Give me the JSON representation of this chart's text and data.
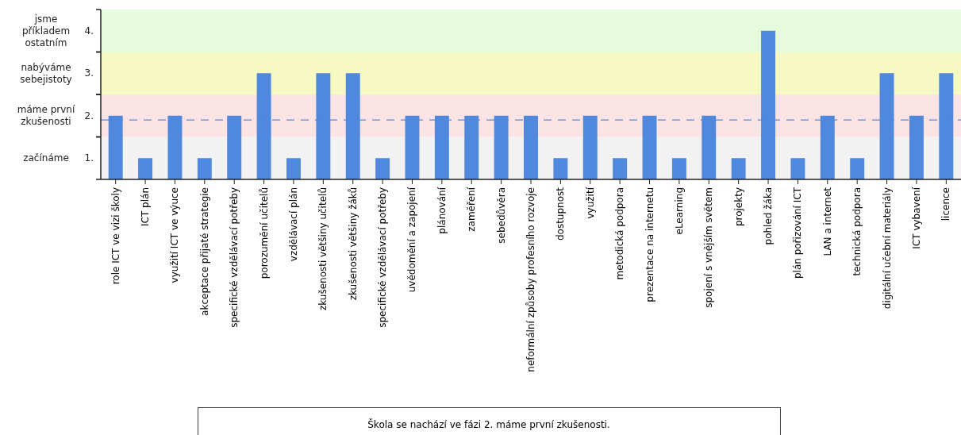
{
  "chart_data": {
    "type": "bar",
    "categories": [
      "role ICT ve vizi školy",
      "ICT plán",
      "využití ICT ve výuce",
      "akceptace přijaté strategie",
      "specifické vzdělávací potřeby",
      "porozumění učitelů",
      "vzdělávací plán",
      "zkušenosti většiny učitelů",
      "zkušenosti většiny žáků",
      "specifické vzdělávací potřeby",
      "uvědomění a zapojení",
      "plánování",
      "zaměření",
      "sebedůvěra",
      "neformální způsoby profesního rozvoje",
      "dostupnost",
      "využití",
      "metodická podpora",
      "prezentace na internetu",
      "eLearning",
      "spojení s vnějším světem",
      "projekty",
      "pohled žáka",
      "plán pořizování ICT",
      "LAN a internet",
      "technická podpora",
      "digitální učební materiály",
      "ICT vybavení",
      "licence"
    ],
    "values": [
      2,
      1,
      2,
      1,
      2,
      3,
      1,
      3,
      3,
      1,
      2,
      2,
      2,
      2,
      2,
      1,
      2,
      1,
      2,
      1,
      2,
      1,
      4,
      1,
      2,
      1,
      3,
      2,
      3
    ],
    "color": "#4f88dc",
    "ylim": [
      0.5,
      4.5
    ],
    "yticks": [
      {
        "value": 1,
        "label": "1."
      },
      {
        "value": 2,
        "label": "2."
      },
      {
        "value": 3,
        "label": "3."
      },
      {
        "value": 4,
        "label": "4."
      }
    ],
    "bands": [
      {
        "axis": "y",
        "from": 0.5,
        "to": 1.5,
        "color": "#f2f2f2"
      },
      {
        "axis": "y",
        "from": 1.5,
        "to": 2.5,
        "color": "#fde4e4"
      },
      {
        "axis": "y",
        "from": 2.5,
        "to": 3.5,
        "color": "#f7f9c3"
      },
      {
        "axis": "y",
        "from": 3.5,
        "to": 4.5,
        "color": "#e6fbdc"
      }
    ],
    "ref_lines": [
      {
        "axis": "y",
        "value": 1.9,
        "color": "#4f88dc",
        "line_style": "dashed"
      }
    ],
    "annotations": [
      "začínáme",
      "máme první zkušenosti",
      "nabýváme sebejistoty",
      "jsme příkladem ostatním",
      "Škola se nachází ve fázi 2. máme první zkušenosti."
    ],
    "grid": false
  }
}
